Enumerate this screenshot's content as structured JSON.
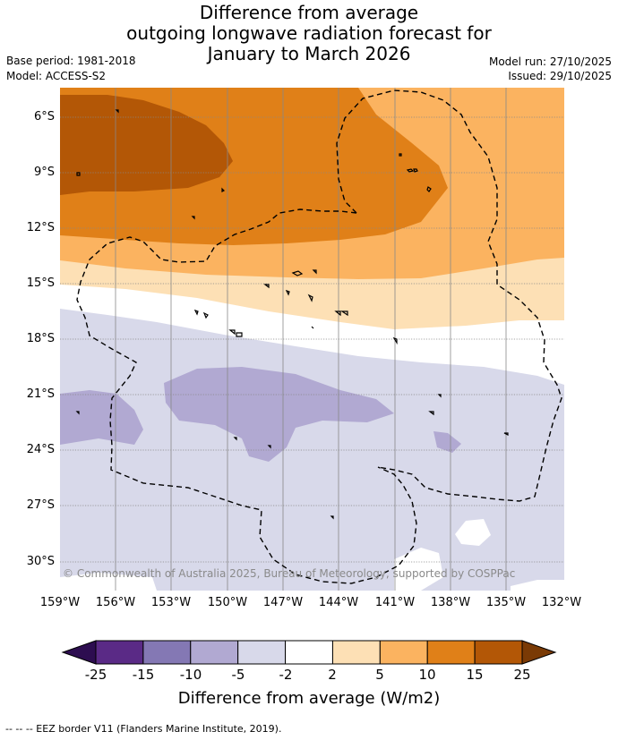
{
  "header": {
    "title_lines": [
      "Difference from average",
      "outgoing longwave radiation forecast for",
      "January to March 2026"
    ],
    "base_period": "Base period: 1981-2018",
    "model": "Model: ACCESS-S2",
    "model_run": "Model run: 27/10/2025",
    "issued": "Issued: 29/10/2025"
  },
  "map": {
    "lat_labels": [
      "6°S",
      "9°S",
      "12°S",
      "15°S",
      "18°S",
      "21°S",
      "24°S",
      "27°S",
      "30°S"
    ],
    "lon_labels": [
      "159°W",
      "156°W",
      "153°W",
      "150°W",
      "147°W",
      "144°W",
      "141°W",
      "138°W",
      "135°W",
      "132°W"
    ],
    "copyright": "© Commonwealth of Australia 2025, Bureau of Meteorology, supported by COSPPac"
  },
  "colorbar": {
    "ticks": [
      "-25",
      "-15",
      "-10",
      "-5",
      "-2",
      "2",
      "5",
      "10",
      "15",
      "25"
    ],
    "colors": [
      "#5a2a86",
      "#8478b4",
      "#b1a9d2",
      "#d8d9ea",
      "#ffffff",
      "#fde0b5",
      "#fbb360",
      "#e08018",
      "#b35706"
    ],
    "under_color": "#2d0d50",
    "over_color": "#7a3a05",
    "title": "Difference from average (W/m2)"
  },
  "footer": {
    "legend": "--  --  -- EEZ border V11 (Flanders Marine Institute, 2019)."
  }
}
